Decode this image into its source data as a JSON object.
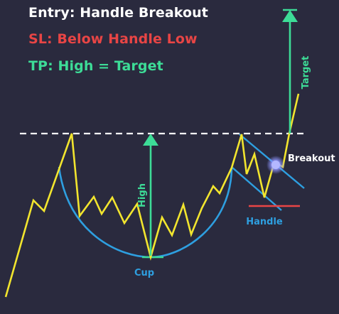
{
  "headlines": {
    "entry": "Entry: Handle Breakout",
    "stop_loss": "SL: Below Handle Low",
    "take_profit": "TP: High = Target"
  },
  "labels": {
    "high": "High",
    "target": "Target",
    "cup": "Cup",
    "handle": "Handle",
    "breakout": "Breakout"
  },
  "colors": {
    "background": "#2a2a3e",
    "entry": "#ffffff",
    "stop_loss": "#e84545",
    "take_profit": "#3ddc97",
    "price": "#f2e52e",
    "cup": "#2e9fe0",
    "resistance": "#ffffff",
    "breakout_dot": "#9aa0ff"
  }
}
